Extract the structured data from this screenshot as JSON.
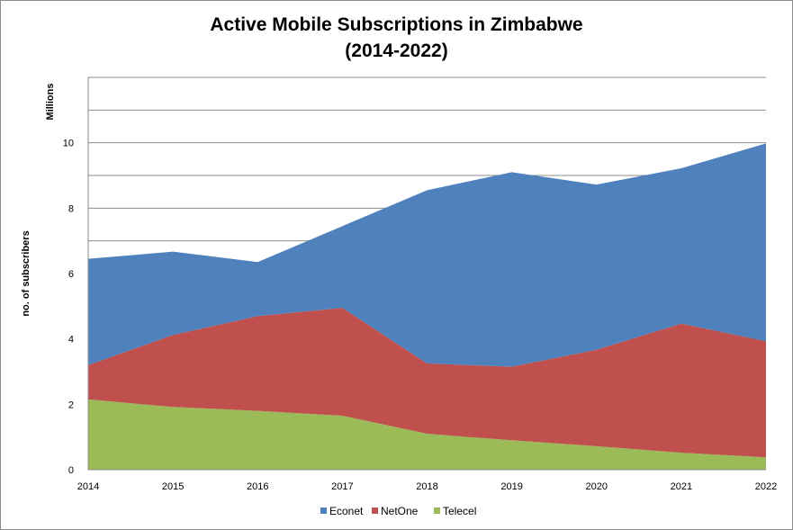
{
  "chart_data": {
    "type": "area",
    "stacked": true,
    "title_line1": "Active Mobile Subscriptions in Zimbabwe",
    "title_line2": "(2014-2022)",
    "units": "Millions",
    "ylabel": "no. of subscribers",
    "xlabel": "",
    "x": [
      "2014",
      "2015",
      "2016",
      "2017",
      "2018",
      "2019",
      "2020",
      "2021",
      "2022"
    ],
    "yticks": [
      "0",
      "2",
      "4",
      "6",
      "8",
      "10"
    ],
    "ylim": [
      0,
      12
    ],
    "grid": true,
    "legend_position": "bottom",
    "series": [
      {
        "name": "Econet",
        "color": "#4f81bd",
        "values": [
          3.25,
          2.55,
          1.65,
          2.5,
          5.3,
          5.95,
          5.05,
          4.75,
          6.05
        ]
      },
      {
        "name": "NetOne",
        "color": "#c0504d",
        "values": [
          1.05,
          2.2,
          2.9,
          3.3,
          2.15,
          2.25,
          2.95,
          3.95,
          3.55
        ]
      },
      {
        "name": "Telecel",
        "color": "#9bbb59",
        "values": [
          2.15,
          1.92,
          1.8,
          1.65,
          1.1,
          0.9,
          0.72,
          0.52,
          0.38
        ]
      }
    ]
  }
}
